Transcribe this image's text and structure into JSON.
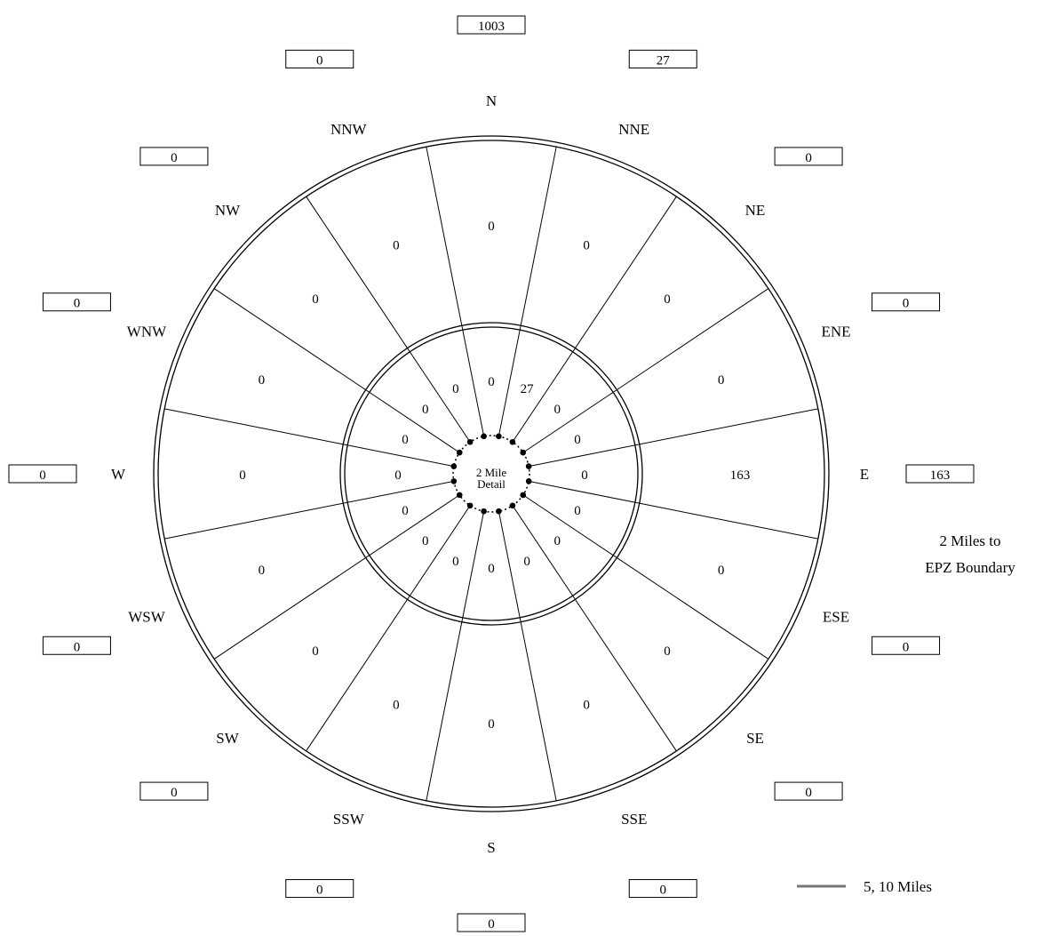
{
  "directions": [
    {
      "label": "N",
      "outer_total": "1003",
      "ring_10mi": "0",
      "ring_5mi": "0"
    },
    {
      "label": "NNE",
      "outer_total": "27",
      "ring_10mi": "0",
      "ring_5mi": "27"
    },
    {
      "label": "NE",
      "outer_total": "0",
      "ring_10mi": "0",
      "ring_5mi": "0"
    },
    {
      "label": "ENE",
      "outer_total": "0",
      "ring_10mi": "0",
      "ring_5mi": "0"
    },
    {
      "label": "E",
      "outer_total": "163",
      "ring_10mi": "163",
      "ring_5mi": "0"
    },
    {
      "label": "ESE",
      "outer_total": "0",
      "ring_10mi": "0",
      "ring_5mi": "0"
    },
    {
      "label": "SE",
      "outer_total": "0",
      "ring_10mi": "0",
      "ring_5mi": "0"
    },
    {
      "label": "SSE",
      "outer_total": "0",
      "ring_10mi": "0",
      "ring_5mi": "0"
    },
    {
      "label": "S",
      "outer_total": "0",
      "ring_10mi": "0",
      "ring_5mi": "0"
    },
    {
      "label": "SSW",
      "outer_total": "0",
      "ring_10mi": "0",
      "ring_5mi": "0"
    },
    {
      "label": "SW",
      "outer_total": "0",
      "ring_10mi": "0",
      "ring_5mi": "0"
    },
    {
      "label": "WSW",
      "outer_total": "0",
      "ring_10mi": "0",
      "ring_5mi": "0"
    },
    {
      "label": "W",
      "outer_total": "0",
      "ring_10mi": "0",
      "ring_5mi": "0"
    },
    {
      "label": "WNW",
      "outer_total": "0",
      "ring_10mi": "0",
      "ring_5mi": "0"
    },
    {
      "label": "NW",
      "outer_total": "0",
      "ring_10mi": "0",
      "ring_5mi": "0"
    },
    {
      "label": "NNW",
      "outer_total": "0",
      "ring_10mi": "0",
      "ring_5mi": "0"
    }
  ],
  "center_label_line1": "2 Mile",
  "center_label_line2": "Detail",
  "epz_label_line1": "2 Miles to",
  "epz_label_line2": "EPZ Boundary",
  "legend_label": "5, 10 Miles",
  "colors": {
    "line": "#000000",
    "legend_line": "#777777",
    "background": "#ffffff"
  }
}
